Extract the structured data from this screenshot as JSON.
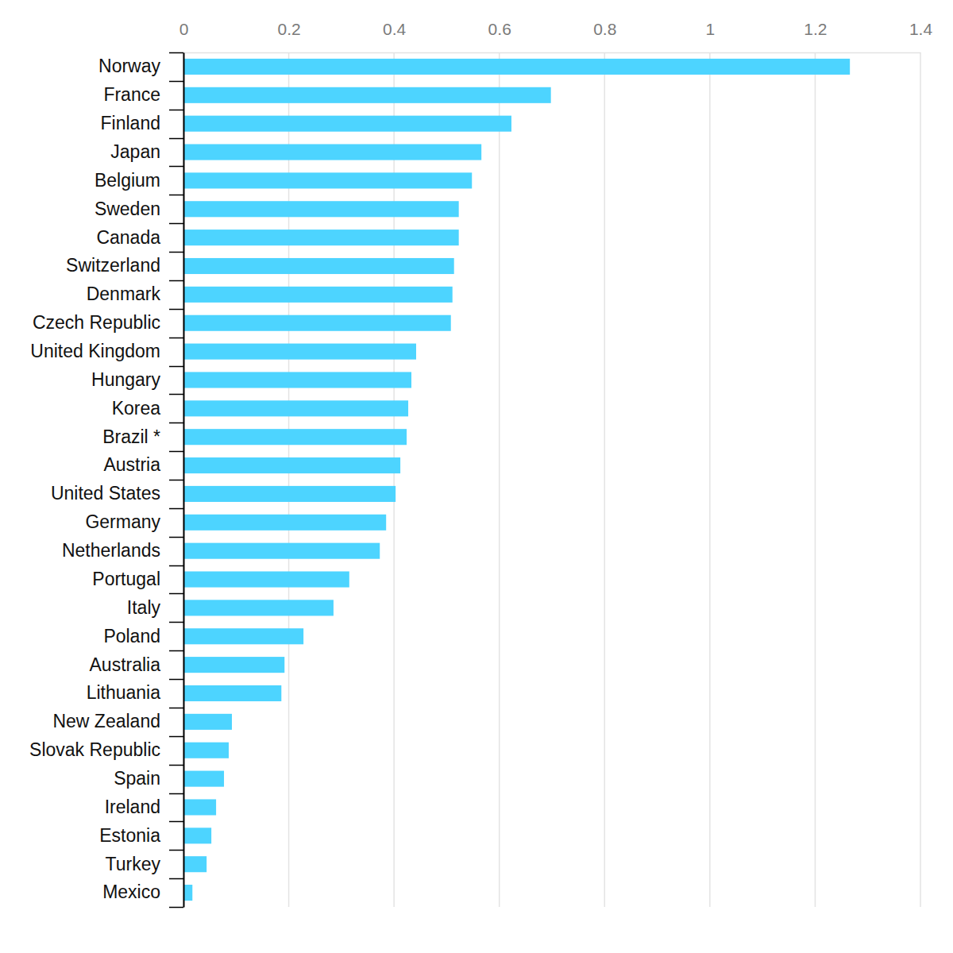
{
  "chart_data": {
    "type": "bar",
    "orientation": "horizontal",
    "categories": [
      "Norway",
      "France",
      "Finland",
      "Japan",
      "Belgium",
      "Sweden",
      "Canada",
      "Switzerland",
      "Denmark",
      "Czech Republic",
      "United Kingdom",
      "Hungary",
      "Korea",
      "Brazil *",
      "Austria",
      "United States",
      "Germany",
      "Netherlands",
      "Portugal",
      "Italy",
      "Poland",
      "Australia",
      "Lithuania",
      "New Zealand",
      "Slovak Republic",
      "Spain",
      "Ireland",
      "Estonia",
      "Turkey",
      "Mexico"
    ],
    "values": [
      1.266,
      0.698,
      0.623,
      0.566,
      0.548,
      0.523,
      0.523,
      0.514,
      0.511,
      0.508,
      0.442,
      0.433,
      0.427,
      0.424,
      0.412,
      0.403,
      0.385,
      0.373,
      0.315,
      0.285,
      0.228,
      0.192,
      0.186,
      0.092,
      0.086,
      0.077,
      0.062,
      0.053,
      0.044,
      0.017
    ],
    "color": "#4dd4ff",
    "xlim": [
      0,
      1.4
    ],
    "xticks": [
      0,
      0.2,
      0.4,
      0.6,
      0.8,
      1,
      1.2,
      1.4
    ],
    "grid": true
  }
}
